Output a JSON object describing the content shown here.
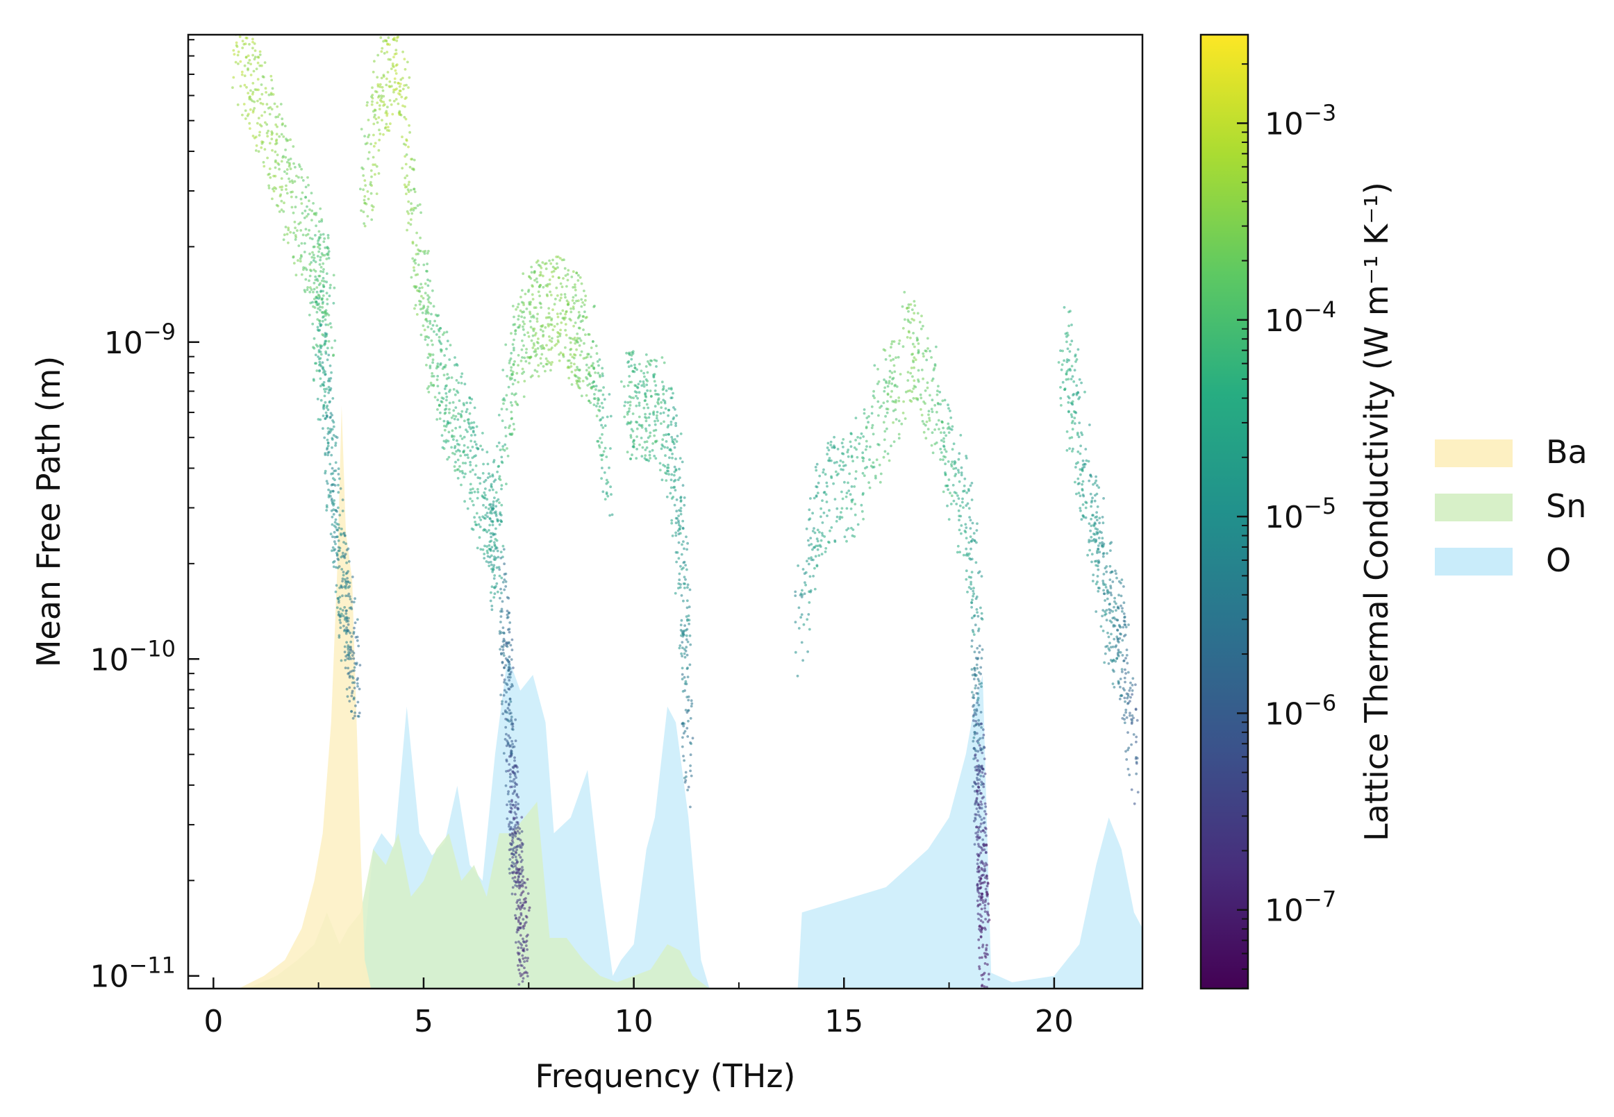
{
  "chart_data": {
    "type": "scatter",
    "title": "",
    "xlabel": "Frequency (THz)",
    "ylabel": "Mean Free Path (m)",
    "xlim": [
      -0.6,
      22.1
    ],
    "ylim_log10": [
      -11.04,
      -8.03
    ],
    "yscale": "log",
    "x_ticks": [
      0,
      5,
      10,
      15,
      20
    ],
    "y_ticks": [
      {
        "exp": -9,
        "label": "10",
        "sup": "−9"
      },
      {
        "exp": -10,
        "label": "10",
        "sup": "−10"
      },
      {
        "exp": -11,
        "label": "10",
        "sup": "−11"
      }
    ],
    "grid": false,
    "colorbar": {
      "label": "Lattice Thermal Conductivity (W m⁻¹ K⁻¹)",
      "scale": "log",
      "colormap": "viridis",
      "range_log10": [
        -7.4,
        -2.55
      ],
      "ticks": [
        {
          "exp": -3,
          "label": "10",
          "sup": "−3"
        },
        {
          "exp": -4,
          "label": "10",
          "sup": "−4"
        },
        {
          "exp": -5,
          "label": "10",
          "sup": "−5"
        },
        {
          "exp": -6,
          "label": "10",
          "sup": "−6"
        },
        {
          "exp": -7,
          "label": "10",
          "sup": "−7"
        }
      ]
    },
    "legend": {
      "placement": "right",
      "entries": [
        {
          "name": "Ba",
          "color": "#fdf0c2"
        },
        {
          "name": "Sn",
          "color": "#d7f0c8"
        },
        {
          "name": "O",
          "color": "#c9ecfa"
        }
      ]
    },
    "projected_dos_areas": [
      {
        "name": "O",
        "color": "#c9ecfa",
        "x": [
          3.5,
          3.8,
          4.0,
          4.3,
          4.6,
          4.9,
          5.2,
          5.5,
          5.8,
          6.1,
          6.4,
          6.7,
          7.0,
          7.3,
          7.6,
          7.9,
          8.1,
          8.5,
          8.9,
          9.2,
          9.5,
          9.7,
          10.0,
          10.3,
          10.5,
          10.8,
          11.0,
          11.3,
          11.6,
          11.8
        ],
        "y_log10": [
          -11.04,
          -10.6,
          -10.55,
          -10.6,
          -10.15,
          -10.55,
          -10.62,
          -10.58,
          -10.4,
          -10.65,
          -10.7,
          -10.3,
          -9.99,
          -10.1,
          -10.05,
          -10.2,
          -10.55,
          -10.5,
          -10.35,
          -10.7,
          -11.0,
          -10.95,
          -10.9,
          -10.6,
          -10.5,
          -10.15,
          -10.2,
          -10.5,
          -10.95,
          -11.04
        ]
      },
      {
        "name": "O",
        "color": "#c9ecfa",
        "x": [
          13.9,
          14.0,
          15.0,
          16.0,
          17.0,
          17.5,
          17.9,
          18.1,
          18.3,
          18.5,
          19.0,
          20.0,
          20.6,
          21.0,
          21.3,
          21.6,
          21.9,
          22.1
        ],
        "y_log10": [
          -11.04,
          -10.8,
          -10.76,
          -10.72,
          -10.6,
          -10.5,
          -10.3,
          -10.15,
          -10.05,
          -10.99,
          -11.02,
          -11.0,
          -10.9,
          -10.65,
          -10.5,
          -10.6,
          -10.8,
          -10.85
        ]
      },
      {
        "name": "Sn",
        "color": "#d7f0c8",
        "x": [
          0.8,
          1.5,
          2.0,
          2.4,
          2.7,
          3.0,
          3.2,
          3.5,
          3.8,
          4.1,
          4.4,
          4.7,
          5.0,
          5.3,
          5.6,
          5.9,
          6.2,
          6.5,
          6.8,
          7.1,
          7.4,
          7.7,
          8.0,
          8.4,
          8.8,
          9.2,
          9.6,
          10.0,
          10.4,
          10.8,
          11.1,
          11.4,
          11.8
        ],
        "y_log10": [
          -11.04,
          -11.0,
          -10.95,
          -10.9,
          -10.8,
          -10.9,
          -10.85,
          -10.8,
          -10.6,
          -10.65,
          -10.55,
          -10.75,
          -10.7,
          -10.6,
          -10.55,
          -10.7,
          -10.65,
          -10.75,
          -10.55,
          -10.55,
          -10.5,
          -10.45,
          -10.88,
          -10.88,
          -10.95,
          -11.0,
          -11.02,
          -11.0,
          -10.98,
          -10.9,
          -10.92,
          -11.0,
          -11.04
        ]
      },
      {
        "name": "Ba",
        "color": "#fdf0c2",
        "x": [
          0.6,
          1.2,
          1.7,
          2.1,
          2.4,
          2.6,
          2.8,
          2.95,
          3.05,
          3.15,
          3.3,
          3.5,
          3.6,
          3.75
        ],
        "y_log10": [
          -11.04,
          -11.0,
          -10.95,
          -10.85,
          -10.7,
          -10.55,
          -10.2,
          -9.7,
          -9.2,
          -9.6,
          -9.75,
          -10.6,
          -10.95,
          -11.04
        ]
      }
    ],
    "scatter_branches": [
      {
        "x": [
          0.5,
          1.0,
          1.5,
          2.0,
          2.5,
          2.8
        ],
        "y_log10": [
          -8.05,
          -8.2,
          -8.4,
          -8.6,
          -8.75,
          -8.9
        ],
        "k_log10": [
          -3.2,
          -3.3,
          -3.5,
          -3.7,
          -3.9,
          -4.1
        ]
      },
      {
        "x": [
          2.4,
          2.6,
          2.8,
          3.0,
          3.2,
          3.4
        ],
        "y_log10": [
          -8.8,
          -9.1,
          -9.4,
          -9.7,
          -9.9,
          -10.1
        ],
        "k_log10": [
          -4.0,
          -4.6,
          -5.0,
          -5.2,
          -5.5,
          -5.7
        ]
      },
      {
        "x": [
          3.6,
          4.0,
          4.4,
          4.8,
          5.2,
          5.6,
          6.0,
          6.4,
          6.8
        ],
        "y_log10": [
          -8.5,
          -8.2,
          -8.1,
          -8.7,
          -9.0,
          -9.2,
          -9.3,
          -9.5,
          -9.7
        ],
        "k_log10": [
          -3.6,
          -3.3,
          -3.1,
          -3.6,
          -4.0,
          -4.2,
          -4.3,
          -4.5,
          -4.8
        ]
      },
      {
        "x": [
          6.6,
          7.0,
          7.4,
          7.8,
          8.2,
          8.6,
          9.0,
          9.4
        ],
        "y_log10": [
          -9.7,
          -9.2,
          -8.95,
          -8.92,
          -8.9,
          -8.95,
          -9.05,
          -9.4
        ],
        "k_log10": [
          -4.9,
          -4.0,
          -3.7,
          -3.6,
          -3.5,
          -3.6,
          -3.8,
          -4.6
        ]
      },
      {
        "x": [
          6.9,
          7.0,
          7.1,
          7.2,
          7.3,
          7.4
        ],
        "y_log10": [
          -9.8,
          -10.1,
          -10.4,
          -10.6,
          -10.8,
          -10.9
        ],
        "k_log10": [
          -5.5,
          -5.8,
          -6.2,
          -6.5,
          -6.7,
          -6.9
        ]
      },
      {
        "x": [
          9.8,
          10.2,
          10.6,
          11.0,
          11.2,
          11.3
        ],
        "y_log10": [
          -9.2,
          -9.2,
          -9.2,
          -9.4,
          -9.8,
          -10.4
        ],
        "k_log10": [
          -4.2,
          -4.2,
          -4.2,
          -4.6,
          -5.0,
          -5.8
        ]
      },
      {
        "x": [
          13.9,
          14.5,
          15.2,
          16.0,
          16.6,
          17.2,
          17.8,
          18.2
        ],
        "y_log10": [
          -9.9,
          -9.5,
          -9.45,
          -9.2,
          -9.0,
          -9.2,
          -9.5,
          -9.8
        ],
        "k_log10": [
          -5.1,
          -4.5,
          -4.4,
          -3.9,
          -3.6,
          -4.0,
          -4.5,
          -4.9
        ]
      },
      {
        "x": [
          18.15,
          18.2,
          18.25,
          18.3,
          18.35
        ],
        "y_log10": [
          -10.0,
          -10.3,
          -10.5,
          -10.7,
          -10.9
        ],
        "k_log10": [
          -5.2,
          -6.1,
          -6.6,
          -6.9,
          -7.2
        ]
      },
      {
        "x": [
          20.2,
          20.6,
          21.0,
          21.3,
          21.6,
          21.9
        ],
        "y_log10": [
          -9.0,
          -9.3,
          -9.6,
          -9.85,
          -9.95,
          -10.3
        ],
        "k_log10": [
          -4.3,
          -4.6,
          -4.9,
          -5.2,
          -5.5,
          -6.0
        ]
      }
    ]
  }
}
